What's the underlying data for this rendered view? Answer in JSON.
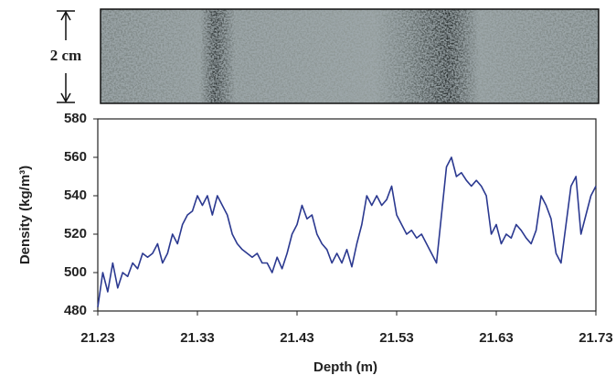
{
  "chart_data": {
    "type": "line",
    "annotation": "2 cm",
    "xlabel": "Depth (m)",
    "ylabel": "Density (kg/m³)",
    "x": [
      21.23,
      21.235,
      21.24,
      21.245,
      21.25,
      21.255,
      21.26,
      21.265,
      21.27,
      21.275,
      21.28,
      21.285,
      21.29,
      21.295,
      21.3,
      21.305,
      21.31,
      21.315,
      21.32,
      21.325,
      21.33,
      21.335,
      21.34,
      21.345,
      21.35,
      21.355,
      21.36,
      21.365,
      21.37,
      21.375,
      21.38,
      21.385,
      21.39,
      21.395,
      21.4,
      21.405,
      21.41,
      21.415,
      21.42,
      21.425,
      21.43,
      21.435,
      21.44,
      21.445,
      21.45,
      21.455,
      21.46,
      21.465,
      21.47,
      21.475,
      21.48,
      21.485,
      21.49,
      21.495,
      21.5,
      21.505,
      21.51,
      21.515,
      21.52,
      21.525,
      21.53,
      21.535,
      21.54,
      21.545,
      21.55,
      21.555,
      21.56,
      21.565,
      21.57,
      21.575,
      21.58,
      21.585,
      21.59,
      21.595,
      21.6,
      21.605,
      21.61,
      21.615,
      21.62,
      21.625,
      21.63,
      21.635,
      21.64,
      21.645,
      21.65,
      21.655,
      21.66,
      21.665,
      21.67,
      21.675,
      21.68,
      21.685,
      21.69,
      21.695,
      21.7,
      21.705,
      21.71,
      21.715,
      21.72,
      21.725,
      21.73
    ],
    "series": [
      {
        "color": "#2b3990",
        "values": [
          482,
          500,
          490,
          505,
          492,
          500,
          498,
          505,
          502,
          510,
          508,
          510,
          515,
          505,
          510,
          520,
          515,
          525,
          530,
          532,
          540,
          535,
          540,
          530,
          540,
          535,
          530,
          520,
          515,
          512,
          510,
          508,
          510,
          505,
          505,
          500,
          508,
          502,
          510,
          520,
          525,
          535,
          528,
          530,
          520,
          515,
          512,
          505,
          510,
          505,
          512,
          503,
          515,
          525,
          540,
          535,
          540,
          535,
          538,
          545,
          530,
          525,
          520,
          522,
          518,
          520,
          515,
          510,
          505,
          530,
          555,
          560,
          550,
          552,
          548,
          545,
          548,
          545,
          540,
          520,
          525,
          515,
          520,
          518,
          525,
          522,
          518,
          515,
          522,
          540,
          535,
          528,
          510,
          505,
          525,
          545,
          550,
          520,
          530,
          540,
          545
        ]
      }
    ],
    "xlim": [
      21.23,
      21.73
    ],
    "xticks": [
      21.23,
      21.33,
      21.43,
      21.53,
      21.63,
      21.73
    ],
    "ylim": [
      480,
      580
    ],
    "yticks": [
      480,
      500,
      520,
      540,
      560,
      580
    ]
  }
}
